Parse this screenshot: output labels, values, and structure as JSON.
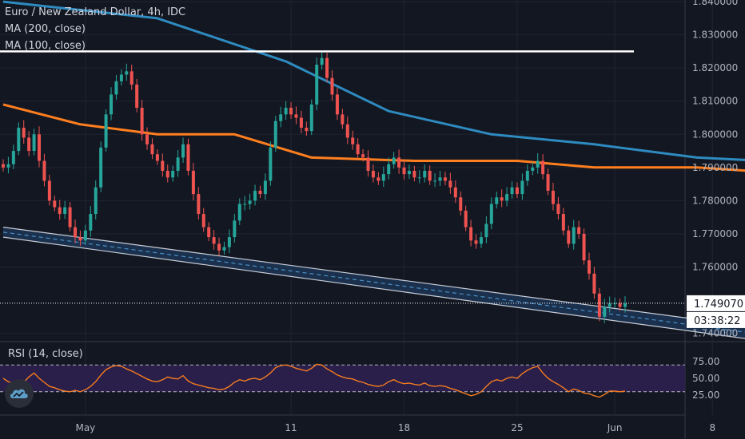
{
  "header": {
    "symbol_title": "Euro / New Zealand Dollar, 4h, IDC",
    "ma200_label": "MA (200, close)",
    "ma100_label": "MA (100, close)",
    "rsi_label": "RSI (14, close)"
  },
  "price_tag": {
    "value": "1.749070",
    "countdown": "03:38:22"
  },
  "colors": {
    "background": "#131722",
    "up_candle": "#26a69a",
    "down_candle": "#ef5350",
    "ma200": "#2e8bc0",
    "ma100": "#ff7f1f",
    "rsi_line": "#f47b20",
    "rsi_band": "#2a1f4a",
    "channel_fill": "#1e3a5c",
    "resistance_line": "#ffffff"
  },
  "chart_data": {
    "type": "candlestick",
    "title": "Euro / New Zealand Dollar, 4h, IDC",
    "x_tick_labels": [
      "May",
      "11",
      "18",
      "25",
      "Jun",
      "8"
    ],
    "price_axis": {
      "ylim": [
        1.7375,
        1.8405
      ],
      "tick_labels": [
        "1.840000",
        "1.830000",
        "1.820000",
        "1.810000",
        "1.800000",
        "1.790000",
        "1.780000",
        "1.770000",
        "1.760000",
        "1.740000"
      ]
    },
    "last_price": 1.74907,
    "resistance_level": 1.825,
    "channel": {
      "upper": [
        [
          0,
          1.772
        ],
        [
          170,
          1.737
        ]
      ],
      "lower": [
        [
          0,
          1.769
        ],
        [
          170,
          1.733
        ]
      ]
    },
    "candles_close": [
      1.79,
      1.791,
      1.795,
      1.802,
      1.799,
      1.795,
      1.8,
      1.792,
      1.786,
      1.78,
      1.778,
      1.776,
      1.778,
      1.772,
      1.769,
      1.768,
      1.771,
      1.776,
      1.784,
      1.796,
      1.806,
      1.812,
      1.816,
      1.818,
      1.819,
      1.815,
      1.808,
      1.8,
      1.797,
      1.794,
      1.792,
      1.789,
      1.787,
      1.789,
      1.793,
      1.797,
      1.789,
      1.782,
      1.776,
      1.772,
      1.769,
      1.767,
      1.765,
      1.766,
      1.769,
      1.774,
      1.779,
      1.779,
      1.78,
      1.783,
      1.782,
      1.786,
      1.796,
      1.804,
      1.806,
      1.808,
      1.806,
      1.805,
      1.802,
      1.801,
      1.809,
      1.821,
      1.823,
      1.817,
      1.812,
      1.806,
      1.803,
      1.799,
      1.797,
      1.794,
      1.793,
      1.789,
      1.787,
      1.786,
      1.788,
      1.791,
      1.793,
      1.79,
      1.788,
      1.789,
      1.787,
      1.787,
      1.789,
      1.786,
      1.786,
      1.787,
      1.786,
      1.784,
      1.781,
      1.777,
      1.772,
      1.768,
      1.767,
      1.769,
      1.773,
      1.779,
      1.781,
      1.78,
      1.782,
      1.784,
      1.782,
      1.786,
      1.789,
      1.79,
      1.792,
      1.788,
      1.783,
      1.779,
      1.776,
      1.771,
      1.767,
      1.772,
      1.77,
      1.762,
      1.758,
      1.752,
      1.745,
      1.748,
      1.749,
      1.749,
      1.748,
      1.749
    ],
    "ma200": [
      [
        0,
        1.84
      ],
      [
        30,
        1.835
      ],
      [
        55,
        1.822
      ],
      [
        75,
        1.807
      ],
      [
        95,
        1.8
      ],
      [
        115,
        1.797
      ],
      [
        135,
        1.793
      ],
      [
        148,
        1.792
      ],
      [
        160,
        1.789
      ]
    ],
    "ma100": [
      [
        0,
        1.809
      ],
      [
        15,
        1.803
      ],
      [
        30,
        1.8
      ],
      [
        45,
        1.8
      ],
      [
        60,
        1.793
      ],
      [
        80,
        1.792
      ],
      [
        100,
        1.792
      ],
      [
        115,
        1.79
      ],
      [
        125,
        1.79
      ],
      [
        135,
        1.79
      ],
      [
        145,
        1.789
      ],
      [
        160,
        1.787
      ]
    ],
    "rsi": {
      "ylim": [
        0,
        100
      ],
      "levels": [
        70,
        30
      ],
      "tick_labels": [
        "75.00",
        "50.00",
        "25.00"
      ],
      "values": [
        50,
        45,
        42,
        40,
        44,
        52,
        58,
        50,
        44,
        38,
        36,
        33,
        31,
        30,
        32,
        30,
        33,
        38,
        45,
        55,
        63,
        67,
        69,
        68,
        64,
        61,
        57,
        53,
        49,
        46,
        45,
        48,
        52,
        50,
        49,
        54,
        46,
        42,
        40,
        38,
        36,
        35,
        33,
        34,
        38,
        44,
        48,
        46,
        49,
        50,
        48,
        52,
        58,
        66,
        69,
        70,
        68,
        65,
        63,
        61,
        65,
        71,
        70,
        64,
        60,
        55,
        52,
        50,
        49,
        46,
        44,
        41,
        39,
        38,
        40,
        45,
        48,
        44,
        42,
        43,
        41,
        40,
        43,
        39,
        38,
        39,
        38,
        35,
        33,
        30,
        27,
        24,
        26,
        30,
        38,
        45,
        48,
        46,
        50,
        52,
        50,
        57,
        62,
        66,
        68,
        58,
        50,
        45,
        41,
        36,
        30,
        34,
        32,
        28,
        27,
        24,
        22,
        26,
        31,
        31,
        30,
        31
      ]
    }
  }
}
